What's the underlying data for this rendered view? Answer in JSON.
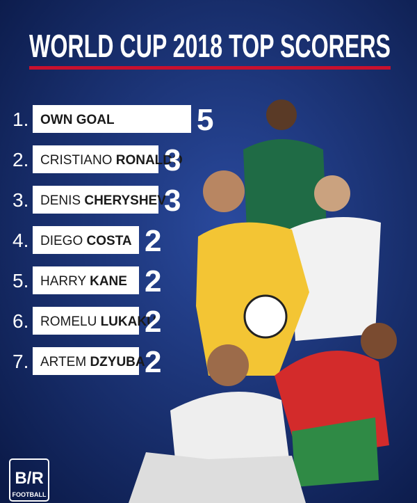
{
  "header": {
    "title": "WORLD CUP 2018 TOP SCORERS"
  },
  "scorers": [
    {
      "rank": "1.",
      "first": "",
      "last": "OWN GOAL",
      "goals": 5
    },
    {
      "rank": "2.",
      "first": "CRISTIANO",
      "last": "RONALDO",
      "goals": 3
    },
    {
      "rank": "3.",
      "first": "DENIS",
      "last": "CHERYSHEV",
      "goals": 3
    },
    {
      "rank": "4.",
      "first": "DIEGO",
      "last": "COSTA",
      "goals": 2
    },
    {
      "rank": "5.",
      "first": "HARRY",
      "last": "KANE",
      "goals": 2
    },
    {
      "rank": "6.",
      "first": "ROMELU",
      "last": "LUKAKU",
      "goals": 2
    },
    {
      "rank": "7.",
      "first": "ARTEM",
      "last": "DZYUBA",
      "goals": 2
    }
  ],
  "logo": {
    "mark": "B/R",
    "sub": "FOOTBALL"
  }
}
